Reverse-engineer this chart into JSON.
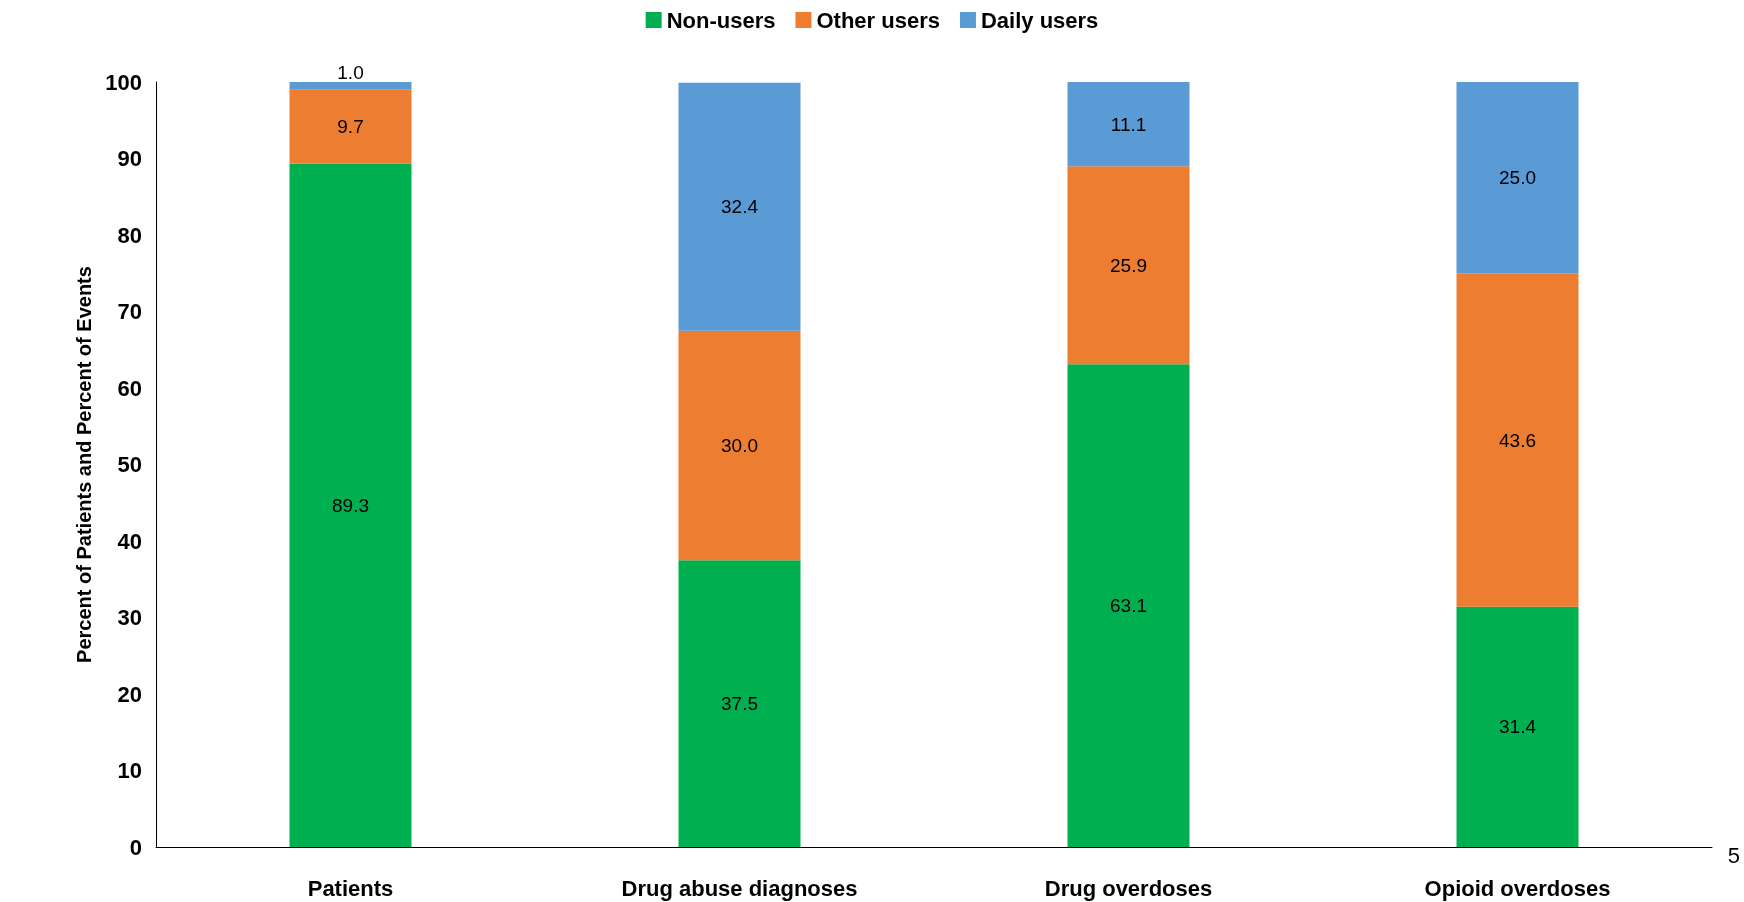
{
  "chart_data": {
    "type": "bar",
    "stacked": true,
    "ylabel": "Percent of Patients and Percent of Events",
    "categories": [
      "Patients",
      "Drug abuse diagnoses",
      "Drug overdoses",
      "Opioid overdoses"
    ],
    "series": [
      {
        "name": "Non-users",
        "color": "#00b050",
        "values": [
          89.3,
          37.5,
          63.1,
          31.4
        ],
        "value_labels": [
          "89.3",
          "37.5",
          "63.1",
          "31.4"
        ]
      },
      {
        "name": "Other users",
        "color": "#ed7d31",
        "values": [
          9.7,
          30.0,
          25.9,
          43.6
        ],
        "value_labels": [
          "9.7",
          "30.0",
          "25.9",
          "43.6"
        ]
      },
      {
        "name": "Daily users",
        "color": "#5b9bd5",
        "values": [
          1.0,
          32.4,
          11.1,
          25.0
        ],
        "value_labels": [
          "1.0",
          "32.4",
          "11.1",
          "25.0"
        ]
      }
    ],
    "ylim": [
      0,
      100
    ],
    "yticks": [
      0,
      10,
      20,
      30,
      40,
      50,
      60,
      70,
      80,
      90,
      100
    ],
    "grid": false,
    "legend": "top",
    "annotations": [
      "5"
    ]
  }
}
